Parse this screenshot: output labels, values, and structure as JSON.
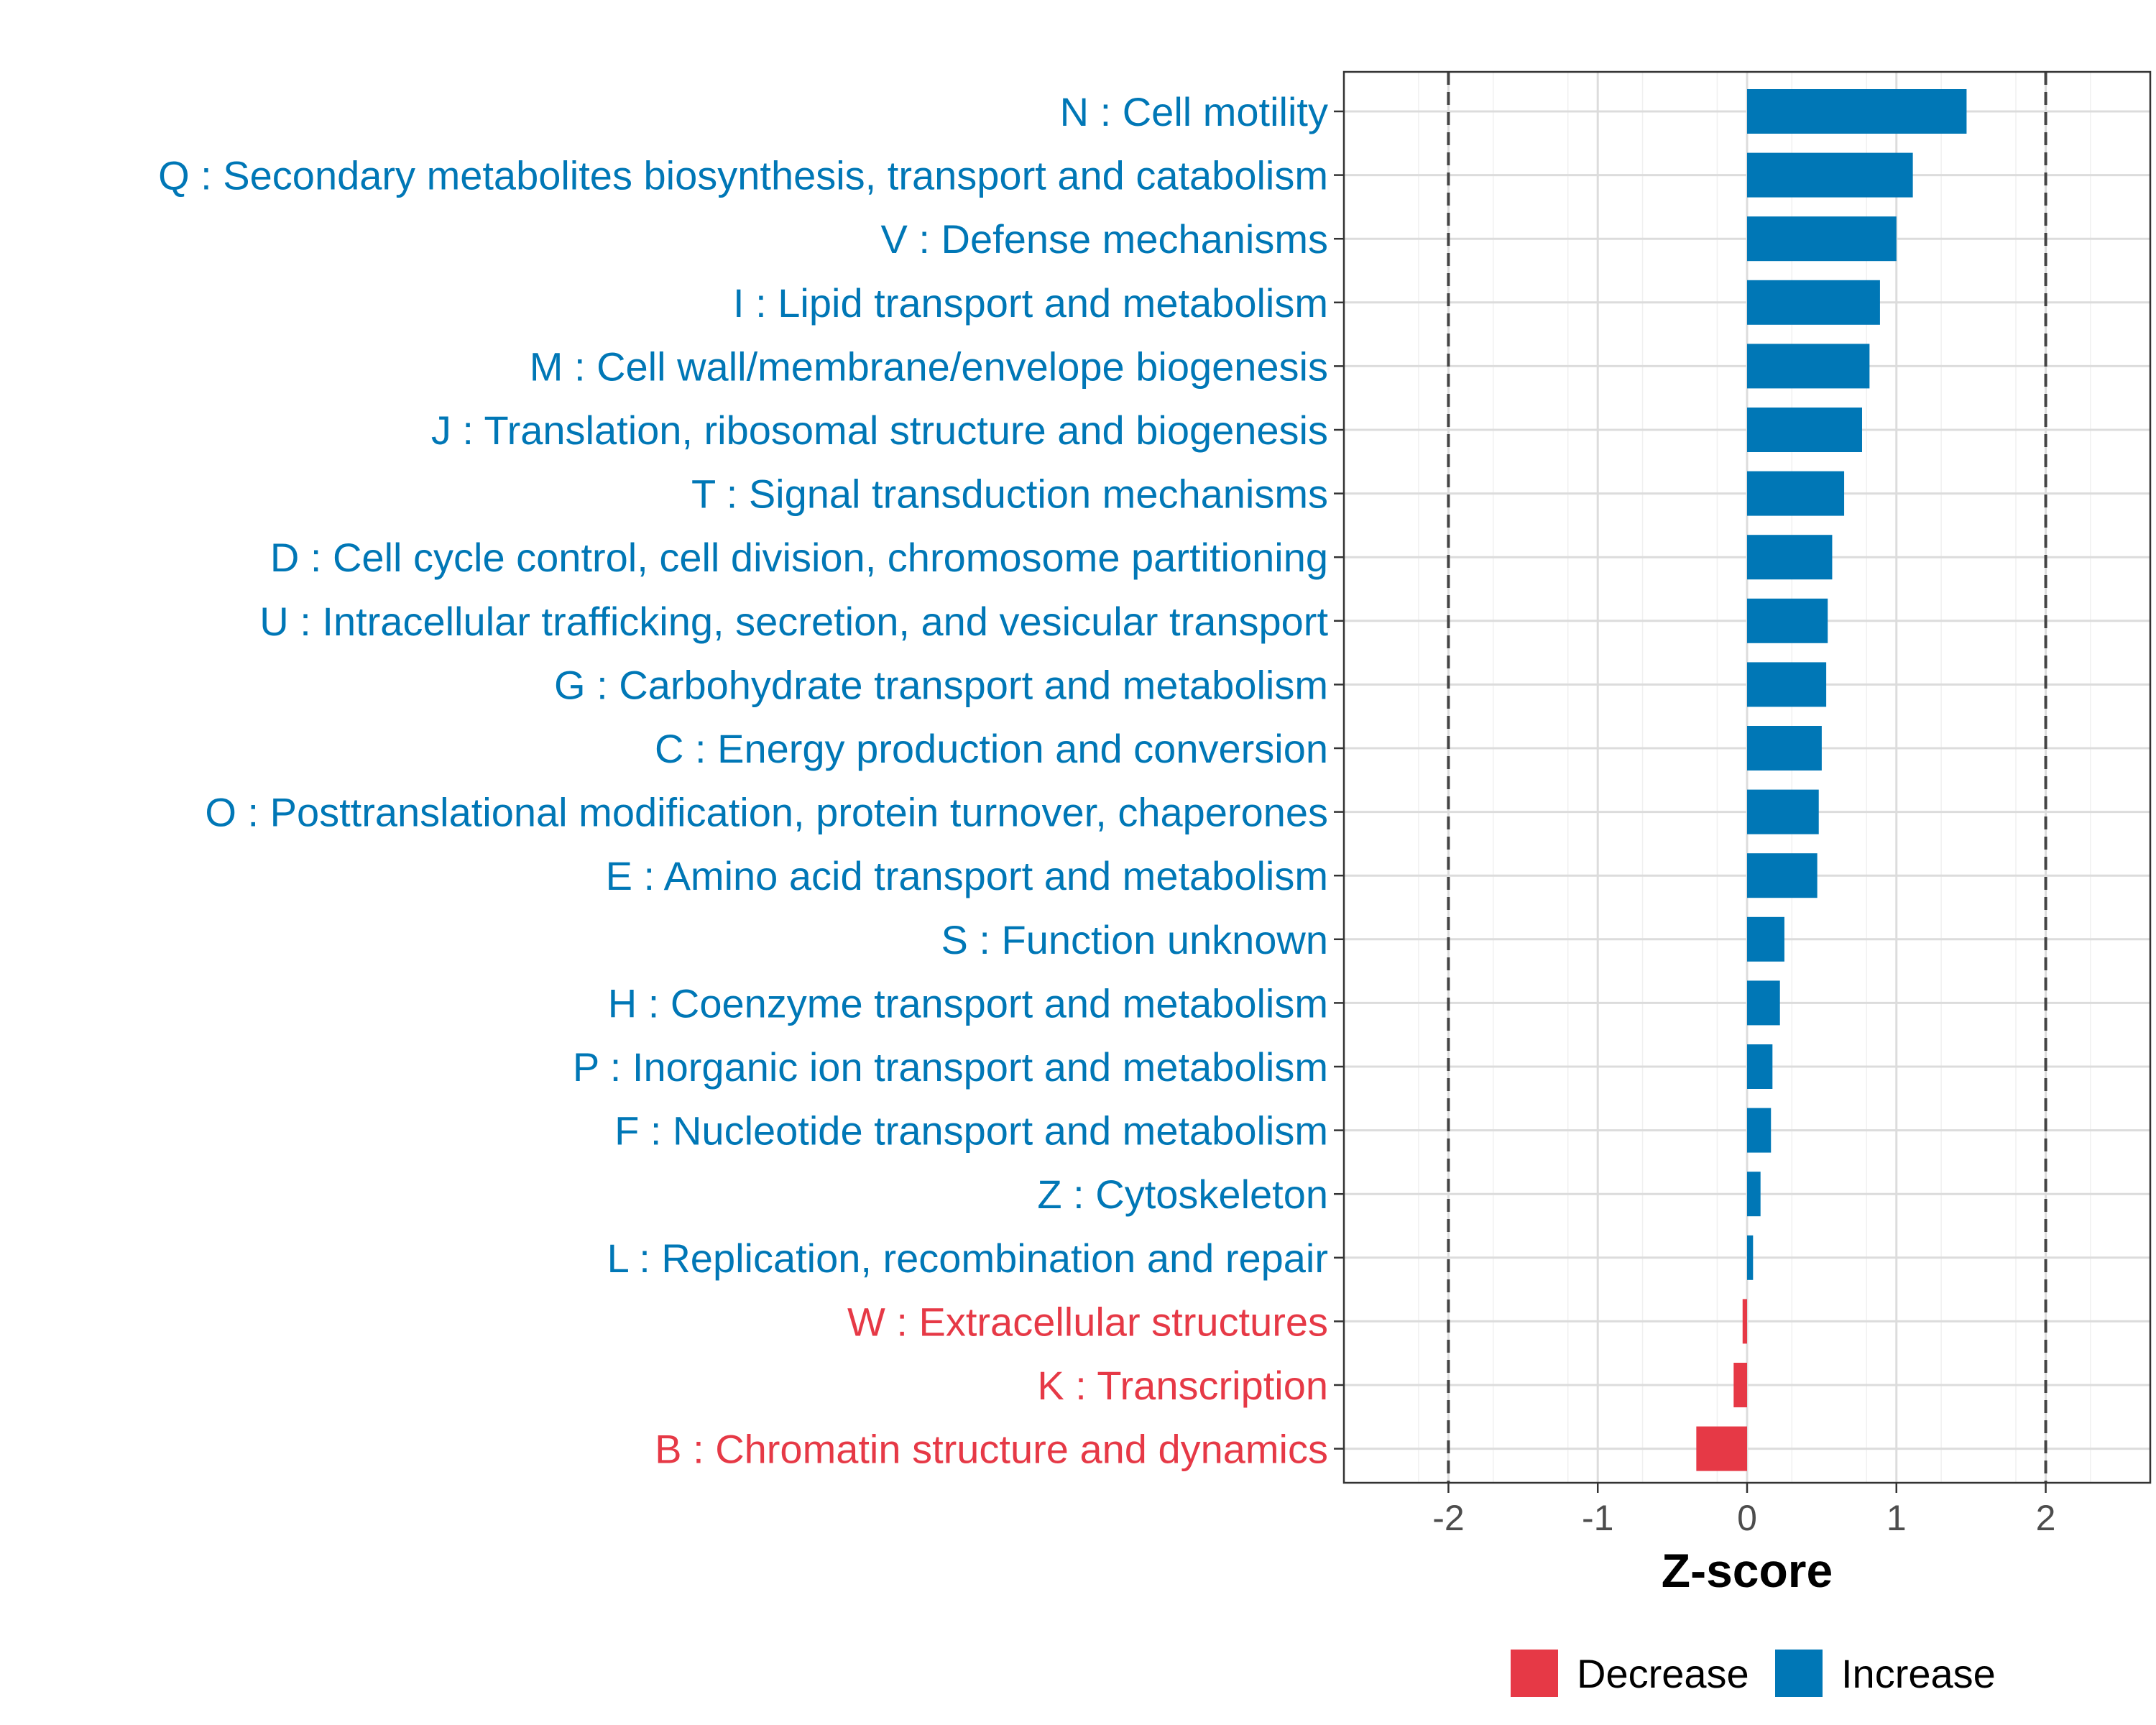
{
  "chart_data": {
    "type": "bar",
    "orientation": "horizontal",
    "categories": [
      "N : Cell motility",
      "Q : Secondary metabolites biosynthesis, transport and catabolism",
      "V : Defense mechanisms",
      "I : Lipid transport and metabolism",
      "M : Cell wall/membrane/envelope biogenesis",
      "J : Translation, ribosomal structure and biogenesis",
      "T : Signal transduction mechanisms",
      "D : Cell cycle control, cell division, chromosome partitioning",
      "U : Intracellular trafficking, secretion, and vesicular transport",
      "G : Carbohydrate transport and metabolism",
      "C : Energy production and conversion",
      "O : Posttranslational modification, protein turnover, chaperones",
      "E : Amino acid transport and metabolism",
      "S : Function unknown",
      "H : Coenzyme transport and metabolism",
      "P : Inorganic ion transport and metabolism",
      "F : Nucleotide transport and metabolism",
      "Z : Cytoskeleton",
      "L : Replication, recombination and repair",
      "W : Extracellular structures",
      "K : Transcription",
      "B : Chromatin structure and dynamics"
    ],
    "values": [
      1.47,
      1.11,
      1.0,
      0.89,
      0.82,
      0.77,
      0.65,
      0.57,
      0.54,
      0.53,
      0.5,
      0.48,
      0.47,
      0.25,
      0.22,
      0.17,
      0.16,
      0.09,
      0.04,
      -0.03,
      -0.09,
      -0.34
    ],
    "groups": [
      "Increase",
      "Increase",
      "Increase",
      "Increase",
      "Increase",
      "Increase",
      "Increase",
      "Increase",
      "Increase",
      "Increase",
      "Increase",
      "Increase",
      "Increase",
      "Increase",
      "Increase",
      "Increase",
      "Increase",
      "Increase",
      "Increase",
      "Decrease",
      "Decrease",
      "Decrease"
    ],
    "title": "",
    "xlabel": "Z-score",
    "ylabel": "",
    "xlim": [
      -2.7,
      2.7
    ],
    "xticks": [
      -2,
      -1,
      0,
      1,
      2
    ],
    "xtick_labels": [
      "-2",
      "-1",
      "0",
      "1",
      "2"
    ],
    "reference_lines": [
      -2,
      2
    ],
    "grid": true,
    "legend": {
      "position": "bottom",
      "entries": [
        {
          "label": "Decrease",
          "color": "#E63946"
        },
        {
          "label": "Increase",
          "color": "#0077B6"
        }
      ]
    },
    "colors": {
      "Decrease": "#E63946",
      "Increase": "#0077B6"
    }
  }
}
